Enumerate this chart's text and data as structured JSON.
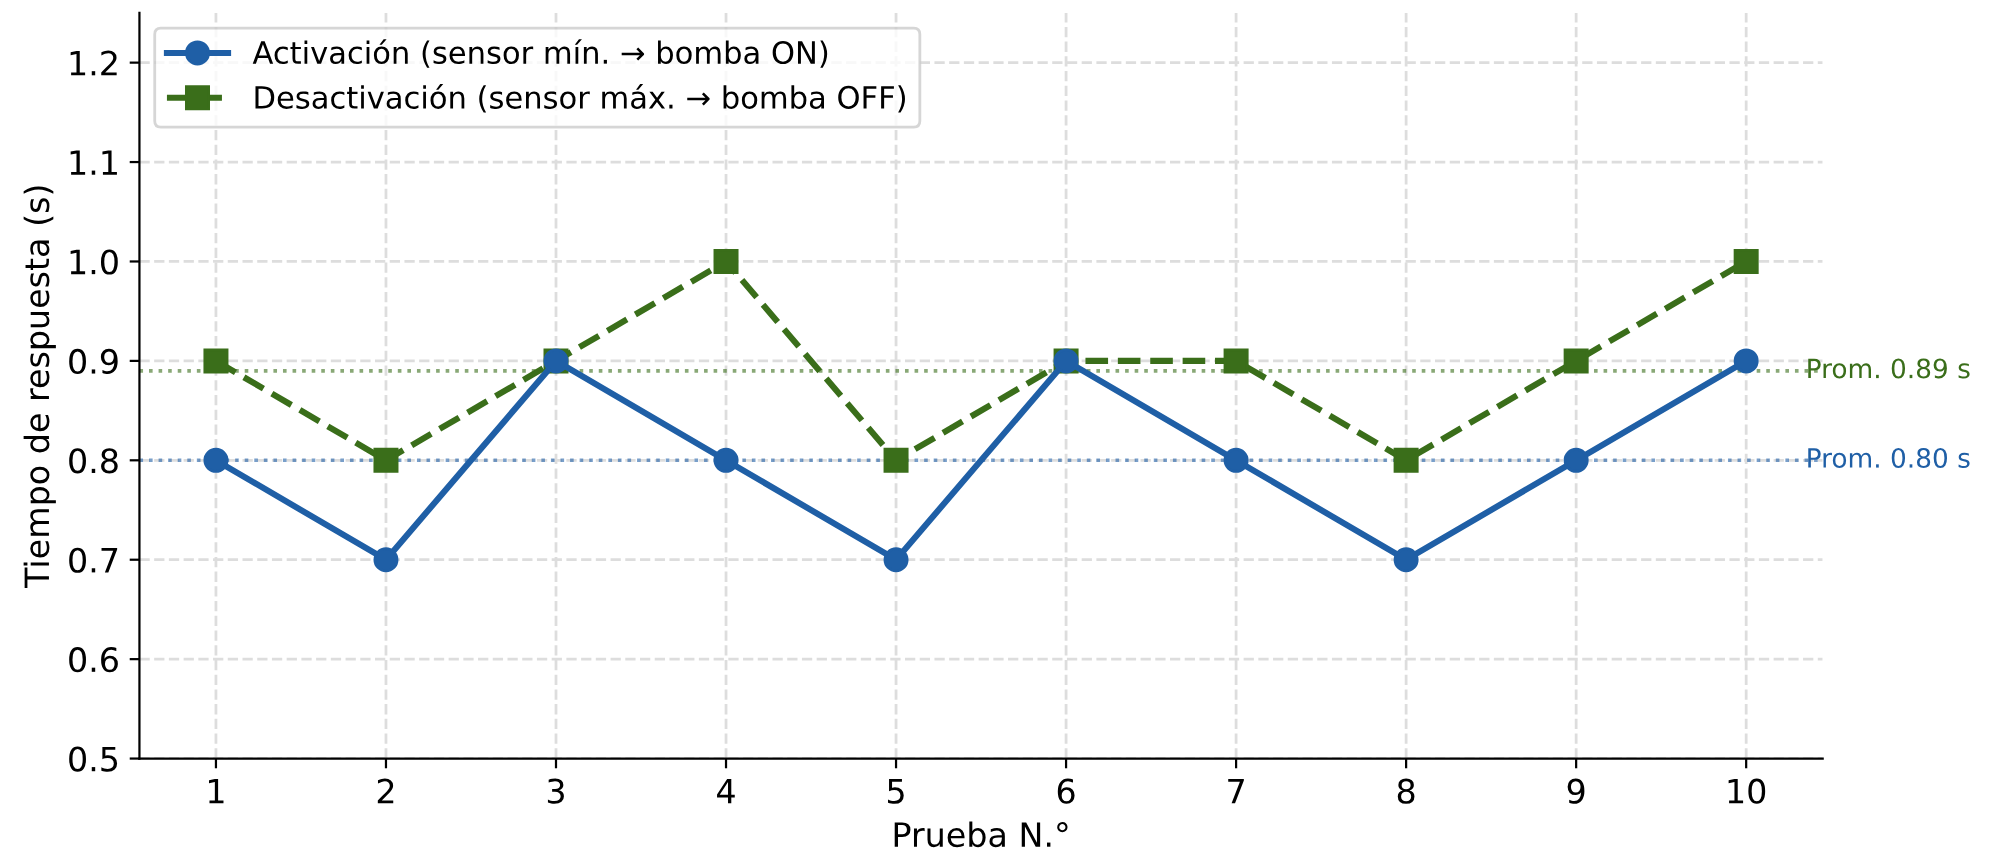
{
  "chart_data": {
    "type": "line",
    "xlabel": "Prueba N.°",
    "ylabel": "Tiempo de respuesta (s)",
    "x": [
      1,
      2,
      3,
      4,
      5,
      6,
      7,
      8,
      9,
      10
    ],
    "series": [
      {
        "name": "Activación (sensor mín. → bomba ON)",
        "color": "#1f5fa6",
        "marker": "circle",
        "line_style": "solid",
        "values": [
          0.8,
          0.7,
          0.9,
          0.8,
          0.7,
          0.9,
          0.8,
          0.7,
          0.8,
          0.9
        ]
      },
      {
        "name": "Desactivación (sensor máx. → bomba OFF)",
        "color": "#3a6e1a",
        "marker": "square",
        "line_style": "dashed",
        "values": [
          0.9,
          0.8,
          0.9,
          1.0,
          0.8,
          0.9,
          0.9,
          0.8,
          0.9,
          1.0
        ]
      }
    ],
    "xlim": [
      0.55,
      10.45
    ],
    "xticks": [
      1,
      2,
      3,
      4,
      5,
      6,
      7,
      8,
      9,
      10
    ],
    "ylim": [
      0.5,
      1.25
    ],
    "yticks": [
      0.5,
      0.6,
      0.7,
      0.8,
      0.9,
      {
        "value": 1,
        "label": "1.0"
      },
      1.1,
      1.2
    ],
    "ref_lines": [
      {
        "axis": "y",
        "value": 0.8,
        "label": "Prom. 0.80 s",
        "color": "#1f5fa6",
        "line_style": "dotted"
      },
      {
        "axis": "y",
        "value": 0.89,
        "label": "Prom. 0.89 s",
        "color": "#3a6e1a",
        "line_style": "dotted"
      }
    ],
    "grid": true,
    "legend": "top left"
  }
}
